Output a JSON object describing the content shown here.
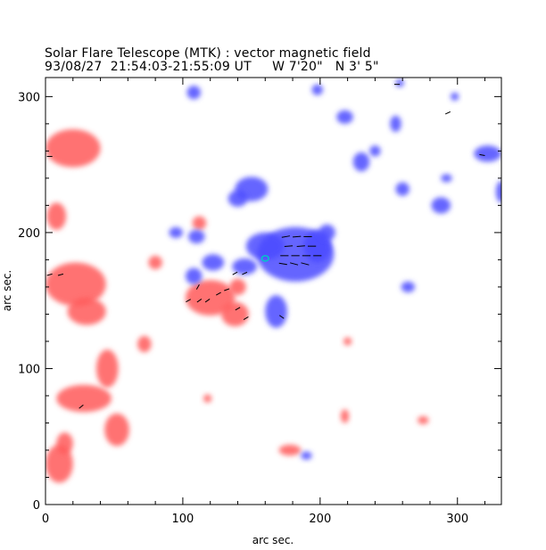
{
  "header": {
    "title_line1": "Solar Flare Telescope (MTK) : vector magnetic field",
    "title_line2": "93/08/27  21:54:03-21:55:09 UT     W 7'20\"   N 3' 5\""
  },
  "colors": {
    "positive_field": "#ff5a5a",
    "negative_field": "#4b4bff",
    "contour": "#00c8c8",
    "vectors": "#000000",
    "background": "#ffffff"
  },
  "chart_data": {
    "type": "heatmap",
    "title": "Solar Flare Telescope (MTK) : vector magnetic field",
    "xlabel": "arc sec.",
    "ylabel": "arc sec.",
    "xlim": [
      0,
      332
    ],
    "ylim": [
      0,
      314
    ],
    "xticks": [
      0,
      100,
      200,
      300
    ],
    "yticks": [
      0,
      100,
      200,
      300
    ],
    "xtick_labels": [
      "0",
      "100",
      "200",
      "300"
    ],
    "ytick_labels": [
      "0",
      "100",
      "200",
      "300"
    ],
    "legend": "none",
    "positive_regions": [
      {
        "x": 20,
        "y": 262,
        "rx": 20,
        "ry": 14
      },
      {
        "x": 8,
        "y": 212,
        "rx": 7,
        "ry": 10
      },
      {
        "x": 22,
        "y": 162,
        "rx": 22,
        "ry": 16
      },
      {
        "x": 30,
        "y": 142,
        "rx": 14,
        "ry": 10
      },
      {
        "x": 45,
        "y": 100,
        "rx": 8,
        "ry": 14
      },
      {
        "x": 28,
        "y": 78,
        "rx": 20,
        "ry": 10
      },
      {
        "x": 52,
        "y": 55,
        "rx": 9,
        "ry": 12
      },
      {
        "x": 10,
        "y": 30,
        "rx": 10,
        "ry": 14
      },
      {
        "x": 14,
        "y": 45,
        "rx": 6,
        "ry": 8
      },
      {
        "x": 120,
        "y": 152,
        "rx": 18,
        "ry": 13
      },
      {
        "x": 138,
        "y": 140,
        "rx": 10,
        "ry": 9
      },
      {
        "x": 140,
        "y": 160,
        "rx": 6,
        "ry": 6
      },
      {
        "x": 72,
        "y": 118,
        "rx": 5,
        "ry": 6
      },
      {
        "x": 80,
        "y": 178,
        "rx": 5,
        "ry": 5
      },
      {
        "x": 112,
        "y": 207,
        "rx": 5,
        "ry": 5
      },
      {
        "x": 178,
        "y": 40,
        "rx": 8,
        "ry": 4
      },
      {
        "x": 220,
        "y": 120,
        "rx": 3,
        "ry": 3
      },
      {
        "x": 218,
        "y": 65,
        "rx": 3,
        "ry": 5
      },
      {
        "x": 275,
        "y": 62,
        "rx": 4,
        "ry": 3
      },
      {
        "x": 118,
        "y": 78,
        "rx": 3,
        "ry": 3
      }
    ],
    "negative_regions": [
      {
        "x": 182,
        "y": 184,
        "rx": 28,
        "ry": 20
      },
      {
        "x": 160,
        "y": 190,
        "rx": 14,
        "ry": 10
      },
      {
        "x": 198,
        "y": 190,
        "rx": 10,
        "ry": 12
      },
      {
        "x": 205,
        "y": 200,
        "rx": 6,
        "ry": 6
      },
      {
        "x": 145,
        "y": 175,
        "rx": 9,
        "ry": 6
      },
      {
        "x": 122,
        "y": 178,
        "rx": 8,
        "ry": 6
      },
      {
        "x": 108,
        "y": 168,
        "rx": 6,
        "ry": 6
      },
      {
        "x": 168,
        "y": 142,
        "rx": 8,
        "ry": 12
      },
      {
        "x": 150,
        "y": 232,
        "rx": 12,
        "ry": 9
      },
      {
        "x": 140,
        "y": 225,
        "rx": 7,
        "ry": 6
      },
      {
        "x": 110,
        "y": 197,
        "rx": 6,
        "ry": 5
      },
      {
        "x": 95,
        "y": 200,
        "rx": 5,
        "ry": 4
      },
      {
        "x": 108,
        "y": 303,
        "rx": 5,
        "ry": 5
      },
      {
        "x": 218,
        "y": 285,
        "rx": 6,
        "ry": 5
      },
      {
        "x": 230,
        "y": 252,
        "rx": 6,
        "ry": 7
      },
      {
        "x": 240,
        "y": 260,
        "rx": 4,
        "ry": 4
      },
      {
        "x": 260,
        "y": 232,
        "rx": 5,
        "ry": 5
      },
      {
        "x": 288,
        "y": 220,
        "rx": 7,
        "ry": 6
      },
      {
        "x": 322,
        "y": 258,
        "rx": 10,
        "ry": 6
      },
      {
        "x": 332,
        "y": 230,
        "rx": 4,
        "ry": 8
      },
      {
        "x": 255,
        "y": 280,
        "rx": 4,
        "ry": 6
      },
      {
        "x": 198,
        "y": 305,
        "rx": 4,
        "ry": 4
      },
      {
        "x": 264,
        "y": 160,
        "rx": 5,
        "ry": 4
      },
      {
        "x": 292,
        "y": 240,
        "rx": 4,
        "ry": 3
      },
      {
        "x": 258,
        "y": 310,
        "rx": 3,
        "ry": 3
      },
      {
        "x": 298,
        "y": 300,
        "rx": 3,
        "ry": 3
      },
      {
        "x": 190,
        "y": 36,
        "rx": 4,
        "ry": 3
      }
    ],
    "vectors": [
      {
        "x": 3,
        "y": 256,
        "angle": 0,
        "len": 4
      },
      {
        "x": 3,
        "y": 169,
        "angle": 15,
        "len": 4
      },
      {
        "x": 11,
        "y": 169,
        "angle": 15,
        "len": 4
      },
      {
        "x": 26,
        "y": 72,
        "angle": 40,
        "len": 4
      },
      {
        "x": 104,
        "y": 150,
        "angle": 30,
        "len": 4
      },
      {
        "x": 112,
        "y": 150,
        "angle": 35,
        "len": 4
      },
      {
        "x": 118,
        "y": 150,
        "angle": 35,
        "len": 4
      },
      {
        "x": 126,
        "y": 155,
        "angle": 30,
        "len": 4
      },
      {
        "x": 111,
        "y": 160,
        "angle": 60,
        "len": 4
      },
      {
        "x": 132,
        "y": 158,
        "angle": 20,
        "len": 4
      },
      {
        "x": 138,
        "y": 170,
        "angle": 30,
        "len": 4
      },
      {
        "x": 145,
        "y": 170,
        "angle": 25,
        "len": 4
      },
      {
        "x": 140,
        "y": 144,
        "angle": 30,
        "len": 4
      },
      {
        "x": 146,
        "y": 137,
        "angle": 30,
        "len": 4
      },
      {
        "x": 172,
        "y": 138,
        "angle": -35,
        "len": 4
      },
      {
        "x": 175,
        "y": 197,
        "angle": 10,
        "len": 6
      },
      {
        "x": 183,
        "y": 197,
        "angle": 5,
        "len": 6
      },
      {
        "x": 191,
        "y": 197,
        "angle": 0,
        "len": 6
      },
      {
        "x": 177,
        "y": 190,
        "angle": 5,
        "len": 6
      },
      {
        "x": 186,
        "y": 190,
        "angle": 5,
        "len": 6
      },
      {
        "x": 194,
        "y": 190,
        "angle": 0,
        "len": 6
      },
      {
        "x": 174,
        "y": 183,
        "angle": 0,
        "len": 6
      },
      {
        "x": 182,
        "y": 183,
        "angle": 0,
        "len": 6
      },
      {
        "x": 190,
        "y": 183,
        "angle": 0,
        "len": 6
      },
      {
        "x": 198,
        "y": 183,
        "angle": 0,
        "len": 6
      },
      {
        "x": 173,
        "y": 177,
        "angle": -10,
        "len": 6
      },
      {
        "x": 181,
        "y": 177,
        "angle": -15,
        "len": 6
      },
      {
        "x": 189,
        "y": 177,
        "angle": -15,
        "len": 6
      },
      {
        "x": 256,
        "y": 309,
        "angle": 0,
        "len": 4
      },
      {
        "x": 293,
        "y": 288,
        "angle": 25,
        "len": 4
      },
      {
        "x": 318,
        "y": 257,
        "angle": -10,
        "len": 4
      }
    ],
    "contours": [
      {
        "x": 160,
        "y": 181,
        "rx": 2.5,
        "ry": 2
      }
    ]
  }
}
